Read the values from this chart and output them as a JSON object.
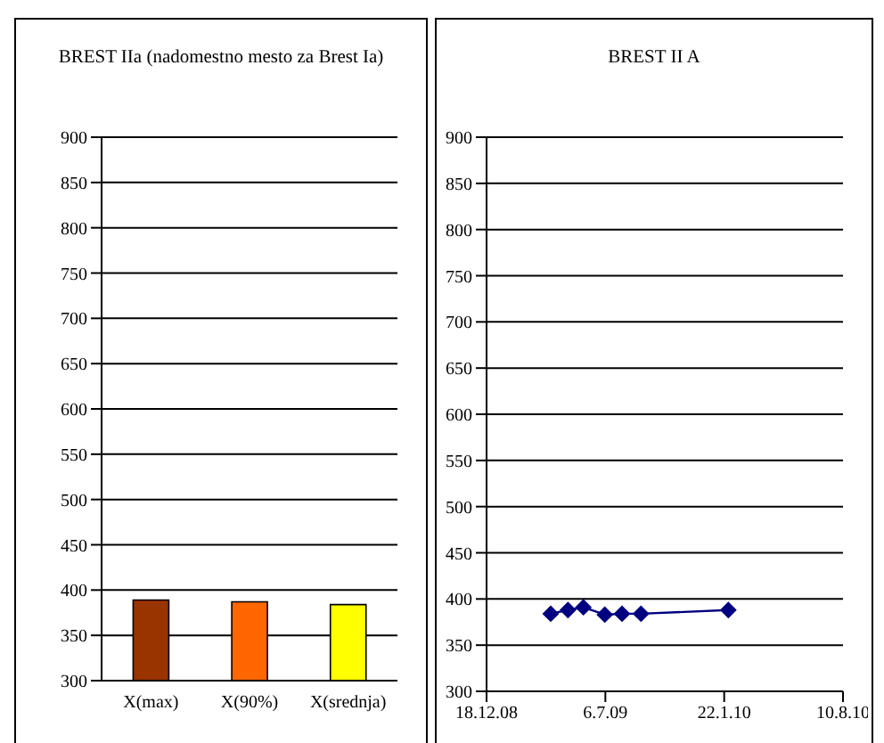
{
  "chart_data": [
    {
      "type": "bar",
      "title": "BREST IIa (nadomestno mesto za Brest Ia)",
      "categories": [
        "X(max)",
        "X(90%)",
        "X(srednja)"
      ],
      "values": [
        389,
        387,
        384
      ],
      "colors": [
        "#993300",
        "#ff6600",
        "#ffff00"
      ],
      "ylim": [
        300,
        900
      ],
      "yticks": [
        300,
        350,
        400,
        450,
        500,
        550,
        600,
        650,
        700,
        750,
        800,
        850,
        900
      ],
      "grid": "y"
    },
    {
      "type": "line",
      "title": "BREST II A",
      "x": [
        "2009-04-05",
        "2009-05-04",
        "2009-05-30",
        "2009-07-05",
        "2009-08-03",
        "2009-09-04",
        "2010-01-29"
      ],
      "series": [
        {
          "color": "#000080",
          "values": [
            384,
            388,
            391,
            383,
            384,
            384,
            388
          ]
        }
      ],
      "marker": "diamond",
      "line_style": "solid",
      "xlim": [
        "2008-12-18",
        "2010-08-10"
      ],
      "xticks": [
        {
          "value": "2008-12-18",
          "label": "18.12.08"
        },
        {
          "value": "2009-07-06",
          "label": "6.7.09"
        },
        {
          "value": "2010-01-22",
          "label": "22.1.10"
        },
        {
          "value": "2010-08-10",
          "label": "10.8.10"
        }
      ],
      "ylim": [
        300,
        900
      ],
      "yticks": [
        300,
        350,
        400,
        450,
        500,
        550,
        600,
        650,
        700,
        750,
        800,
        850,
        900
      ],
      "grid": "y"
    }
  ]
}
